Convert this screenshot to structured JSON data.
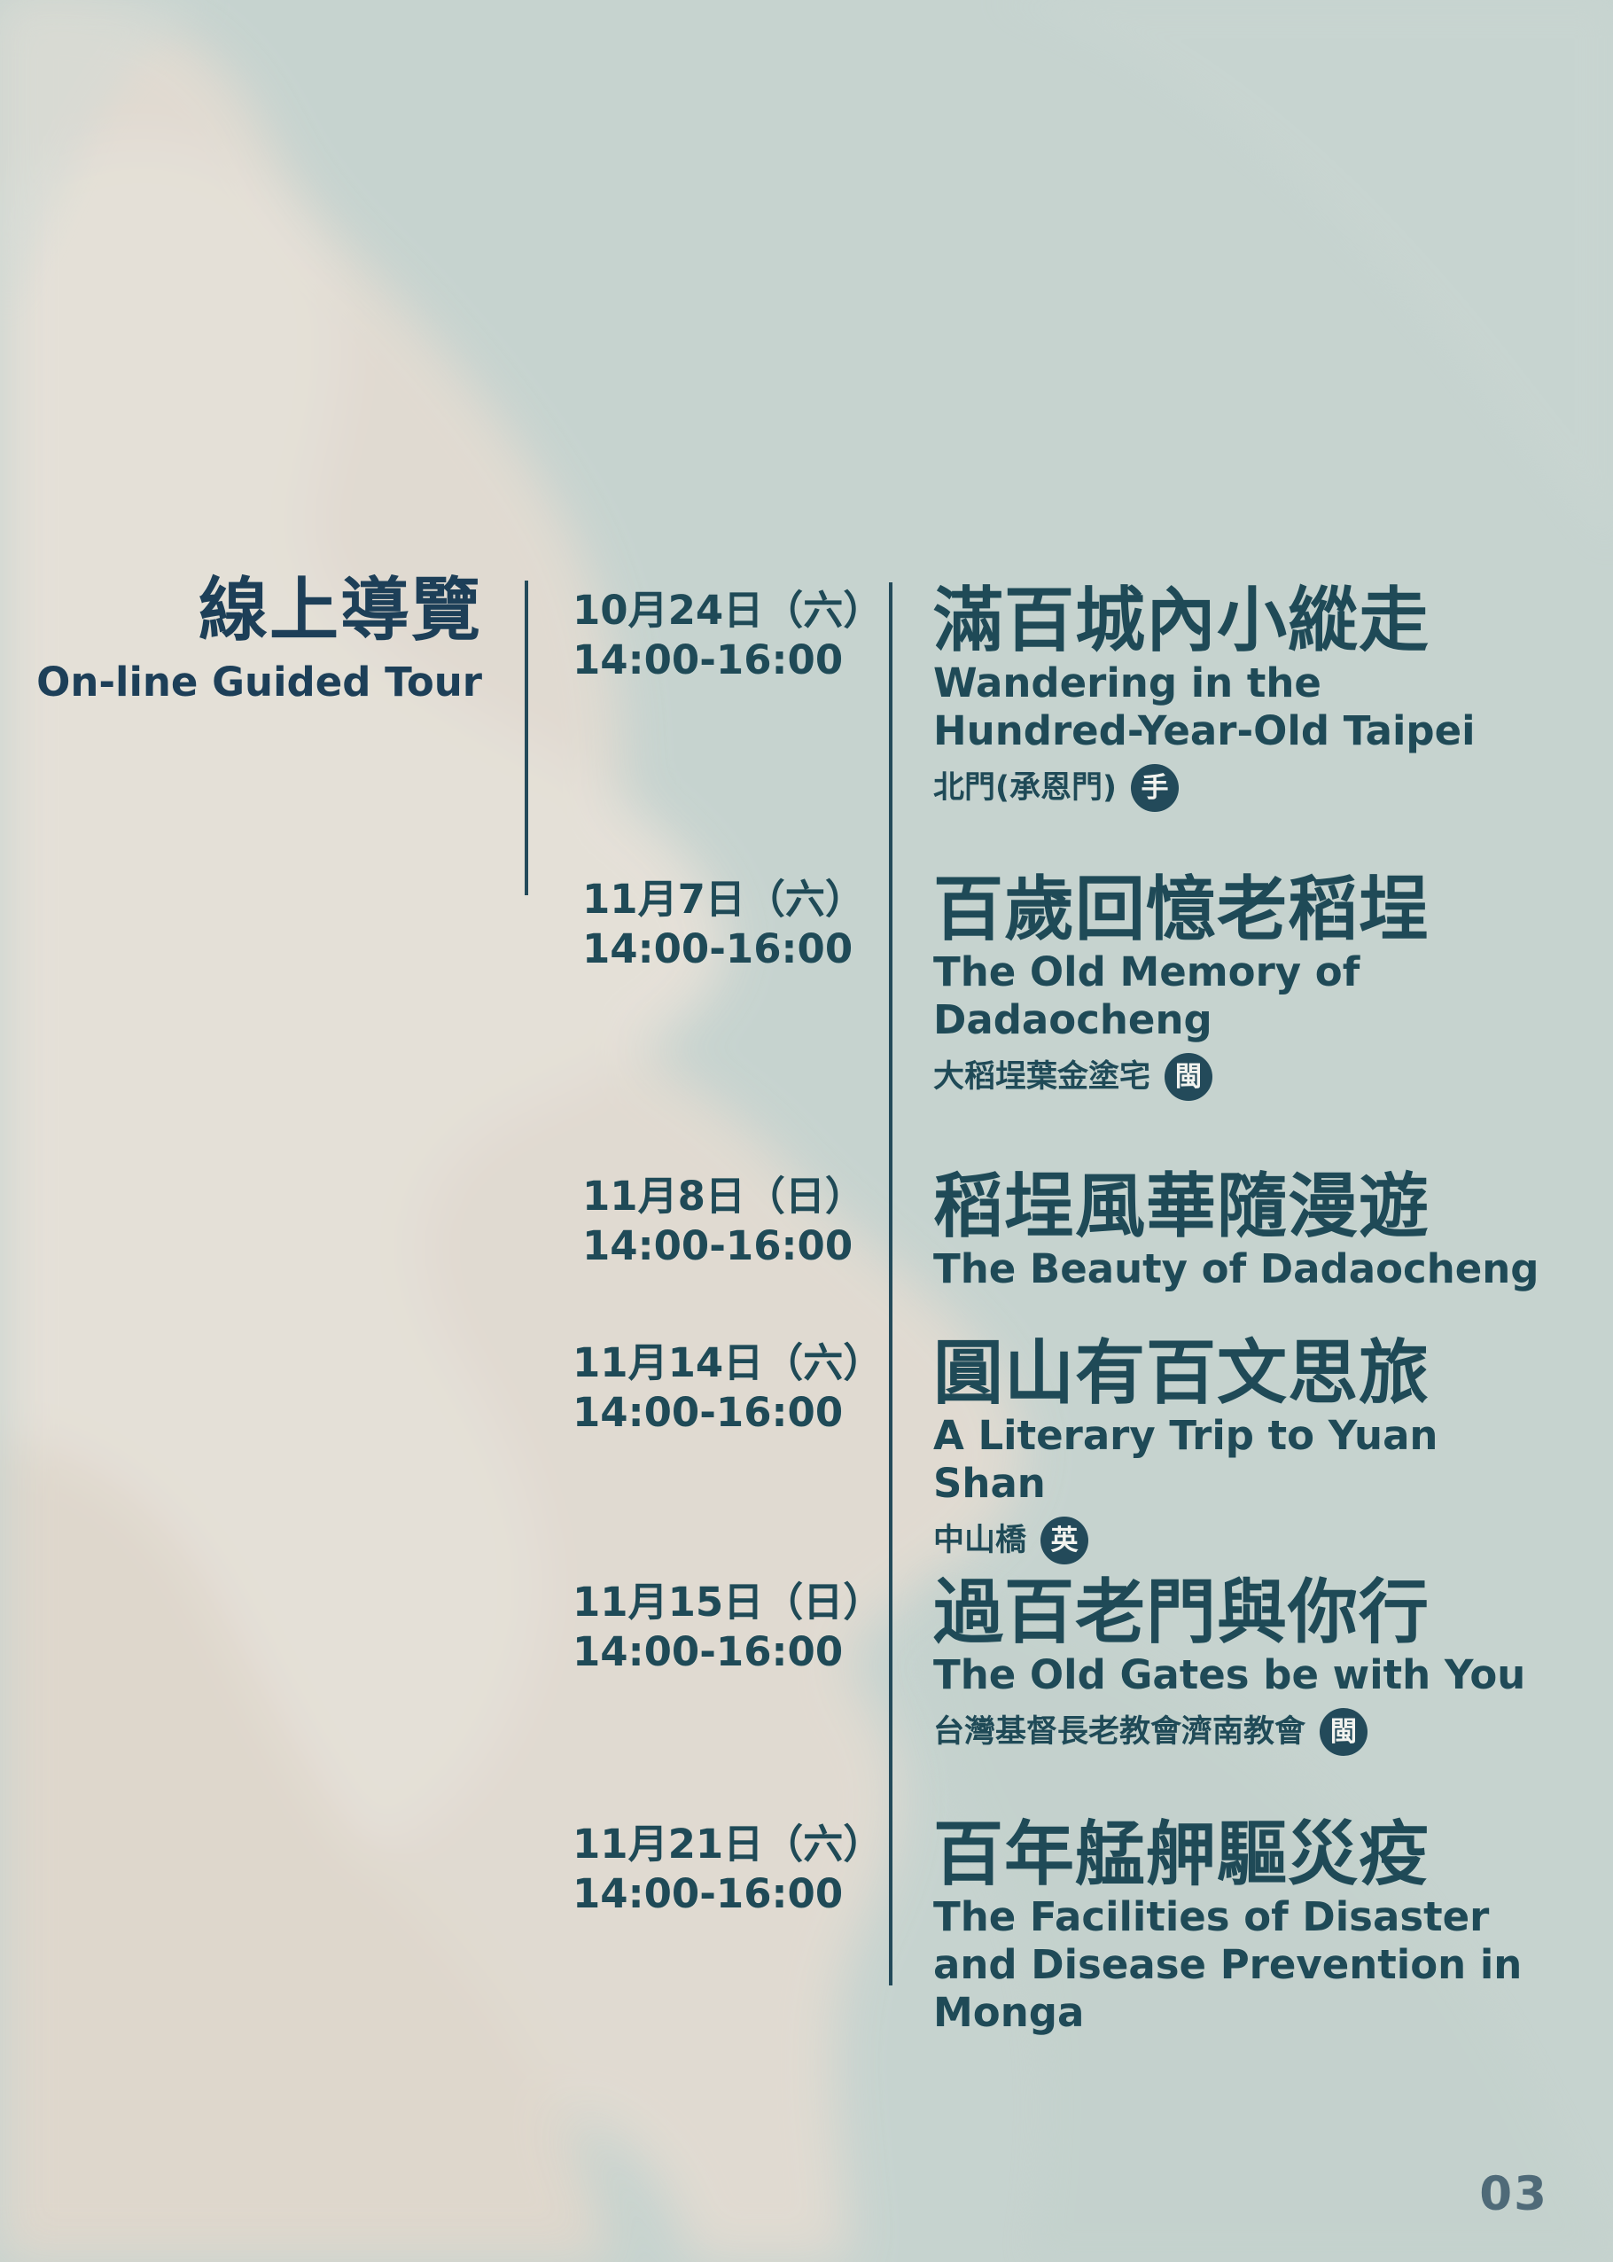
{
  "section": {
    "zh": "線上導覽",
    "en": "On-line Guided Tour"
  },
  "events": [
    {
      "date": "10月24日（六）",
      "time": "14:00-16:00",
      "title_zh": "滿百城內小縱走",
      "title_en": "Wandering in the Hundred-Year-Old Taipei",
      "location": "北門(承恩門)",
      "badge": "手"
    },
    {
      "date": "11月7日（六）",
      "time": "14:00-16:00",
      "title_zh": "百歲回憶老稻埕",
      "title_en": "The Old Memory of Dadaocheng",
      "location": "大稻埕葉金塗宅",
      "badge": "閩"
    },
    {
      "date": "11月8日（日）",
      "time": "14:00-16:00",
      "title_zh": "稻埕風華隨漫遊",
      "title_en": "The Beauty of Dadaocheng"
    },
    {
      "date": "11月14日（六）",
      "time": "14:00-16:00",
      "title_zh": "圓山有百文思旅",
      "title_en": "A Literary Trip to Yuan Shan",
      "location": "中山橋",
      "badge": "英"
    },
    {
      "date": "11月15日（日）",
      "time": "14:00-16:00",
      "title_zh": "過百老門與你行",
      "title_en": "The Old Gates be with You",
      "location": "台灣基督長老教會濟南教會",
      "badge": "閩"
    },
    {
      "date": "11月21日（六）",
      "time": "14:00-16:00",
      "title_zh": "百年艋舺驅災疫",
      "title_en": "The Facilities of Disaster and Disease Prevention in Monga"
    }
  ],
  "page_number": "03",
  "colors": {
    "background": "#c6d3cf",
    "watercolor": "#e5ddd3",
    "text": "#1f4a57",
    "title": "#1d3f58",
    "page_number": "#4f6a78",
    "badge": "#234a5a"
  }
}
